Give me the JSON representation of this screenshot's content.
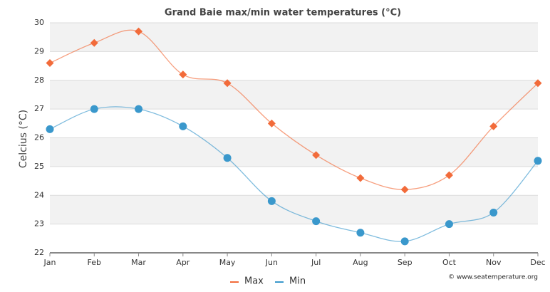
{
  "chart_data": {
    "type": "line",
    "title": "Grand Baie max/min water temperatures (°C)",
    "y_label": "Celcius (°C)",
    "credit": "© www.seatemperature.org",
    "categories": [
      "Jan",
      "Feb",
      "Mar",
      "Apr",
      "May",
      "Jun",
      "Jul",
      "Aug",
      "Sep",
      "Oct",
      "Nov",
      "Dec"
    ],
    "series": [
      {
        "name": "Max",
        "color": "#f26b3a",
        "values": [
          28.6,
          29.3,
          29.7,
          28.2,
          27.9,
          26.5,
          25.4,
          24.6,
          24.2,
          24.7,
          26.4,
          27.9
        ]
      },
      {
        "name": "Min",
        "color": "#3a98cc",
        "values": [
          26.3,
          27.0,
          27.0,
          26.4,
          25.3,
          23.8,
          23.1,
          22.7,
          22.4,
          23.0,
          23.4,
          25.2
        ]
      }
    ],
    "ylim": [
      22,
      30
    ],
    "yticks": [
      22,
      23,
      24,
      25,
      26,
      27,
      28,
      29,
      30
    ],
    "grid": true,
    "legend": "bottom"
  }
}
